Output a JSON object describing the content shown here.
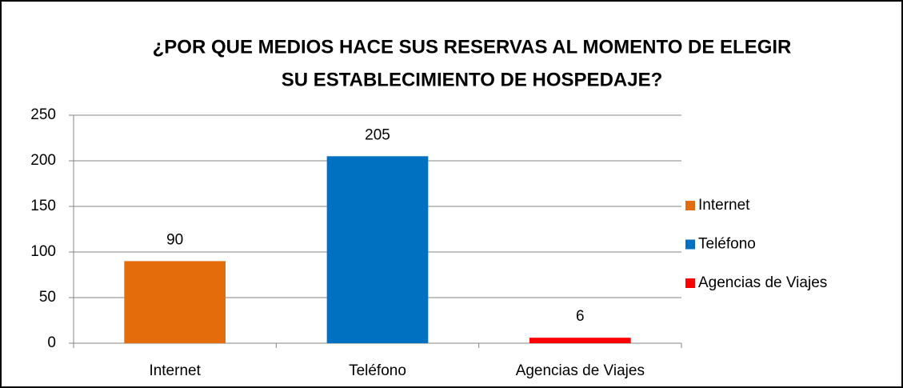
{
  "chart_data": {
    "type": "bar",
    "title": [
      "¿POR QUE MEDIOS HACE SUS RESERVAS AL MOMENTO DE ELEGIR",
      "SU ESTABLECIMIENTO DE HOSPEDAJE?"
    ],
    "categories": [
      "Internet",
      "Teléfono",
      "Agencias de Viajes"
    ],
    "values": [
      90,
      205,
      6
    ],
    "colors": [
      "#e46c0a",
      "#0070c0",
      "#ff0000"
    ],
    "ylim": [
      0,
      250
    ],
    "yticks": [
      0,
      50,
      100,
      150,
      200,
      250
    ],
    "grid": true,
    "legend": "right"
  }
}
